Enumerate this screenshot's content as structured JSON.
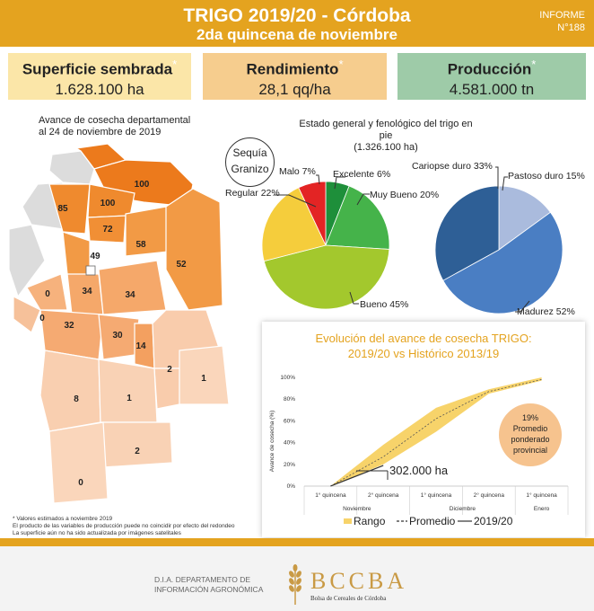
{
  "header": {
    "title": "TRIGO 2019/20 - Córdoba",
    "subtitle": "2da quincena de noviembre",
    "informe_label": "INFORME",
    "informe_number": "N°188",
    "bg_color": "#e4a31f"
  },
  "kpis": [
    {
      "label": "Superficie sembrada",
      "mark": "*",
      "value": "1.628.100 ha",
      "color": "#fbe6a8"
    },
    {
      "label": "Rendimiento",
      "mark": "*",
      "value": "28,1 qq/ha",
      "color": "#f6cd8e"
    },
    {
      "label": "Producción",
      "mark": "*",
      "value": "4.581.000 tn",
      "color": "#9ecba8"
    }
  ],
  "map": {
    "title_line1": "Avance de cosecha departamental",
    "title_line2": "al 24 de noviembre de 2019",
    "departments": [
      "100",
      "100",
      "85",
      "72",
      "58",
      "49",
      "52",
      "34",
      "34",
      "0",
      "0",
      "32",
      "30",
      "14",
      "2",
      "1",
      "8",
      "1",
      "2",
      "0"
    ]
  },
  "pie_section": {
    "title_line1": "Estado general y fenológico del trigo en pie",
    "title_line2": "(1.326.100 ha)",
    "note_line1": "Sequía",
    "note_line2": "Granizo"
  },
  "chart_data": [
    {
      "type": "pie",
      "title": "Estado general",
      "slices": [
        {
          "label": "Excelente",
          "value": 6,
          "display": "Excelente 6%",
          "color": "#1e8f3a"
        },
        {
          "label": "Muy Bueno",
          "value": 20,
          "display": "Muy Bueno 20%",
          "color": "#45b34a"
        },
        {
          "label": "Bueno",
          "value": 45,
          "display": "Bueno 45%",
          "color": "#a3c82d"
        },
        {
          "label": "Regular",
          "value": 22,
          "display": "Regular 22%",
          "color": "#f5cd3c"
        },
        {
          "label": "Malo",
          "value": 7,
          "display": "Malo 7%",
          "color": "#e32424"
        }
      ]
    },
    {
      "type": "pie",
      "title": "Estado fenológico",
      "slices": [
        {
          "label": "Pastoso duro",
          "value": 15,
          "display": "Pastoso duro 15%",
          "color": "#aabbdd"
        },
        {
          "label": "Madurez",
          "value": 52,
          "display": "Madurez 52%",
          "color": "#4a7ec3"
        },
        {
          "label": "Cariopse duro",
          "value": 33,
          "display": "Cariopse duro 33%",
          "color": "#2e5f96"
        }
      ]
    },
    {
      "type": "area",
      "title": "Evolución del avance de cosecha TRIGO:",
      "subtitle": "2019/20 vs Histórico 2013/19",
      "ylabel": "Avance de cosecha (%)",
      "ylim": [
        0,
        100
      ],
      "yticks": [
        "0%",
        "20%",
        "40%",
        "60%",
        "80%",
        "100%"
      ],
      "categories": [
        "1° quincena",
        "2° quincena",
        "1° quincena",
        "2° quincena",
        "1° quincena"
      ],
      "months": [
        "Noviembre",
        "Diciembre",
        "Enero"
      ],
      "range_low": [
        0,
        20,
        50,
        85,
        97
      ],
      "range_high": [
        0,
        38,
        72,
        89,
        100
      ],
      "promedio": [
        0,
        27,
        62,
        87,
        98
      ],
      "series_2019": [
        0,
        19
      ],
      "annotation_value": "302.000 ha",
      "badge_line1": "19%",
      "badge_line2": "Promedio",
      "badge_line3": "ponderado",
      "badge_line4": "provincial",
      "legend": [
        {
          "label": "Rango",
          "color": "#f7d36a",
          "style": "fill"
        },
        {
          "label": "Promedio",
          "color": "#333333",
          "style": "dash"
        },
        {
          "label": "2019/20",
          "color": "#333333",
          "style": "solid"
        }
      ]
    }
  ],
  "footnote": {
    "line1": "Valores estimados a noviembre 2019",
    "line2": "El producto de las variables de producción puede no coincidir por efecto del redondeo",
    "line3": "La superficie aún no ha sido actualizada por imágenes satelitales"
  },
  "footer": {
    "dia_line1": "D.I.A. DEPARTAMENTO DE",
    "dia_line2": "INFORMACIÓN AGRONÓMICA",
    "logo_text": "BCCBA",
    "logo_sub": "Bolsa de Cereales de Córdoba"
  }
}
